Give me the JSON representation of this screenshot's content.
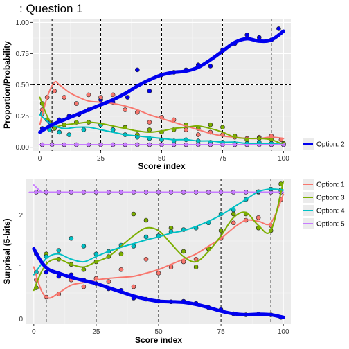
{
  "title": ": Question 1",
  "chart_data": [
    {
      "type": "line",
      "panel": "top",
      "xlabel": "Score index",
      "ylabel": "Proportion/Probability",
      "xlim": [
        -3,
        103
      ],
      "ylim": [
        -0.03,
        1.03
      ],
      "xticks": [
        0,
        25,
        50,
        75,
        100
      ],
      "xtick_labels": [
        "0",
        "25",
        "50",
        "75",
        "100"
      ],
      "yticks": [
        0,
        0.25,
        0.5,
        0.75,
        1.0
      ],
      "ytick_labels": [
        "0.00",
        "0.25",
        "0.50",
        "0.75",
        "1.00"
      ],
      "hline": 0.5,
      "vlines": [
        5,
        25,
        50,
        75,
        95
      ],
      "grid": true,
      "legend_position": "right",
      "legend": [
        {
          "label": "Option: 2",
          "color": "#0000ee"
        }
      ],
      "series": [
        {
          "name": "Option: 2",
          "color": "#0000ee",
          "emphasis": true,
          "x": [
            0,
            5,
            10,
            15,
            20,
            25,
            30,
            35,
            40,
            45,
            50,
            55,
            60,
            65,
            70,
            75,
            80,
            85,
            90,
            95,
            100
          ],
          "y": [
            0.12,
            0.18,
            0.22,
            0.26,
            0.3,
            0.34,
            0.38,
            0.43,
            0.49,
            0.54,
            0.58,
            0.6,
            0.61,
            0.64,
            0.7,
            0.77,
            0.84,
            0.87,
            0.85,
            0.86,
            0.93
          ]
        },
        {
          "name": "Option: 1",
          "color": "#f8766d",
          "x": [
            0,
            3,
            6,
            8,
            12,
            16,
            20,
            25,
            30,
            35,
            40,
            45,
            50,
            55,
            60,
            65,
            70,
            75,
            80,
            85,
            90,
            95,
            100
          ],
          "y": [
            0.18,
            0.4,
            0.52,
            0.5,
            0.44,
            0.4,
            0.37,
            0.36,
            0.35,
            0.33,
            0.3,
            0.26,
            0.23,
            0.2,
            0.17,
            0.14,
            0.11,
            0.09,
            0.08,
            0.07,
            0.07,
            0.08,
            0.07
          ]
        },
        {
          "name": "Option: 3",
          "color": "#7cae00",
          "x": [
            0,
            3,
            6,
            10,
            15,
            20,
            25,
            30,
            35,
            40,
            45,
            50,
            55,
            60,
            65,
            70,
            75,
            80,
            85,
            90,
            95,
            100
          ],
          "y": [
            0.4,
            0.25,
            0.17,
            0.18,
            0.19,
            0.2,
            0.19,
            0.17,
            0.15,
            0.13,
            0.12,
            0.13,
            0.15,
            0.16,
            0.17,
            0.15,
            0.12,
            0.08,
            0.07,
            0.07,
            0.06,
            0.02
          ]
        },
        {
          "name": "Option: 4",
          "color": "#00bfc4",
          "x": [
            0,
            5,
            10,
            15,
            20,
            25,
            30,
            35,
            40,
            45,
            50,
            55,
            60,
            65,
            70,
            75,
            80,
            85,
            90,
            95,
            100
          ],
          "y": [
            0.26,
            0.18,
            0.15,
            0.16,
            0.16,
            0.14,
            0.12,
            0.1,
            0.09,
            0.08,
            0.07,
            0.06,
            0.06,
            0.05,
            0.05,
            0.04,
            0.04,
            0.03,
            0.03,
            0.03,
            0.02
          ]
        },
        {
          "name": "Option: 5",
          "color": "#c77cff",
          "x": [
            0,
            50,
            100
          ],
          "y": [
            0.02,
            0.02,
            0.02
          ]
        }
      ],
      "points": [
        {
          "color": "#0000ee",
          "x": [
            1,
            4,
            8,
            12,
            16,
            20,
            25,
            30,
            36,
            40,
            45,
            50,
            55,
            60,
            65,
            70,
            75,
            80,
            85,
            90,
            95,
            98
          ],
          "y": [
            0.15,
            0.2,
            0.22,
            0.25,
            0.26,
            0.3,
            0.38,
            0.36,
            0.4,
            0.62,
            0.45,
            0.58,
            0.6,
            0.62,
            0.66,
            0.65,
            0.78,
            0.83,
            0.9,
            0.88,
            0.86,
            0.95
          ]
        },
        {
          "color": "#f8766d",
          "x": [
            1,
            3,
            6,
            10,
            15,
            20,
            25,
            30,
            35,
            40,
            45,
            50,
            55,
            60,
            65,
            70,
            75,
            80,
            85,
            90,
            95,
            99
          ],
          "y": [
            0.3,
            0.4,
            0.45,
            0.4,
            0.35,
            0.42,
            0.4,
            0.42,
            0.3,
            0.28,
            0.2,
            0.24,
            0.22,
            0.14,
            0.1,
            0.12,
            0.1,
            0.08,
            0.07,
            0.08,
            0.09,
            0.06
          ]
        },
        {
          "color": "#7cae00",
          "x": [
            1,
            3,
            6,
            10,
            15,
            20,
            25,
            30,
            35,
            40,
            45,
            50,
            55,
            60,
            65,
            70,
            75,
            80,
            85,
            90,
            95,
            100
          ],
          "y": [
            0.35,
            0.22,
            0.15,
            0.18,
            0.2,
            0.2,
            0.18,
            0.14,
            0.16,
            0.1,
            0.14,
            0.12,
            0.14,
            0.18,
            0.15,
            0.18,
            0.16,
            0.09,
            0.06,
            0.07,
            0.06,
            0.03
          ]
        },
        {
          "color": "#00bfc4",
          "x": [
            1,
            4,
            8,
            12,
            18,
            25,
            30,
            35,
            40,
            45,
            50,
            55,
            60,
            65,
            70,
            75,
            80,
            85,
            90,
            95,
            100
          ],
          "y": [
            0.27,
            0.14,
            0.12,
            0.1,
            0.14,
            0.18,
            0.14,
            0.1,
            0.08,
            0.07,
            0.06,
            0.05,
            0.06,
            0.05,
            0.04,
            0.04,
            0.03,
            0.03,
            0.04,
            0.03,
            0.02
          ]
        },
        {
          "color": "#c77cff",
          "x": [
            1,
            5,
            10,
            15,
            20,
            25,
            30,
            35,
            40,
            45,
            50,
            55,
            60,
            65,
            70,
            75,
            80,
            85,
            90,
            95,
            100
          ],
          "y": [
            0.02,
            0.02,
            0.02,
            0.02,
            0.02,
            0.02,
            0.02,
            0.02,
            0.02,
            0.02,
            0.02,
            0.02,
            0.02,
            0.02,
            0.02,
            0.02,
            0.02,
            0.02,
            0.02,
            0.02,
            0.02
          ]
        }
      ]
    },
    {
      "type": "line",
      "panel": "bottom",
      "xlabel": "Score index",
      "ylabel": "Surprisal (5-bits)",
      "xlim": [
        -3,
        103
      ],
      "ylim": [
        -0.1,
        2.7
      ],
      "xticks": [
        0,
        25,
        50,
        75,
        100
      ],
      "xtick_labels": [
        "0",
        "25",
        "50",
        "75",
        "100"
      ],
      "yticks": [
        0,
        1,
        2
      ],
      "ytick_labels": [
        "0",
        "1",
        "2"
      ],
      "hline": 0,
      "vlines": [
        5,
        25,
        50,
        75,
        95
      ],
      "grid": true,
      "legend_position": "right",
      "legend": [
        {
          "label": "Option: 1",
          "color": "#f8766d"
        },
        {
          "label": "Option: 3",
          "color": "#7cae00"
        },
        {
          "label": "Option: 4",
          "color": "#00bfc4"
        },
        {
          "label": "Option: 5",
          "color": "#c77cff"
        }
      ],
      "series": [
        {
          "name": "Option: 5",
          "color": "#c77cff",
          "x": [
            0,
            3,
            6,
            100
          ],
          "y": [
            2.58,
            2.45,
            2.44,
            2.44
          ]
        },
        {
          "name": "Option: 2",
          "color": "#0000ee",
          "emphasis": true,
          "x": [
            0,
            3,
            6,
            10,
            15,
            20,
            25,
            30,
            35,
            40,
            45,
            50,
            55,
            60,
            65,
            70,
            75,
            80,
            85,
            90,
            95,
            100
          ],
          "y": [
            1.35,
            1.1,
            0.95,
            0.88,
            0.8,
            0.74,
            0.68,
            0.6,
            0.52,
            0.44,
            0.38,
            0.34,
            0.33,
            0.32,
            0.28,
            0.22,
            0.15,
            0.1,
            0.08,
            0.09,
            0.08,
            0.03
          ]
        },
        {
          "name": "Option: 1",
          "color": "#f8766d",
          "x": [
            0,
            3,
            6,
            10,
            15,
            20,
            25,
            30,
            35,
            40,
            45,
            50,
            55,
            60,
            65,
            70,
            75,
            80,
            85,
            90,
            95,
            100
          ],
          "y": [
            1.0,
            0.55,
            0.4,
            0.5,
            0.65,
            0.7,
            0.75,
            0.78,
            0.8,
            0.82,
            0.88,
            0.95,
            1.05,
            1.15,
            1.25,
            1.4,
            1.55,
            1.75,
            1.9,
            1.88,
            1.85,
            2.4
          ]
        },
        {
          "name": "Option: 3",
          "color": "#7cae00",
          "x": [
            0,
            3,
            6,
            10,
            15,
            20,
            25,
            30,
            35,
            40,
            45,
            50,
            55,
            60,
            65,
            70,
            75,
            80,
            85,
            90,
            95,
            100
          ],
          "y": [
            0.55,
            0.9,
            1.1,
            1.15,
            1.05,
            1.0,
            1.1,
            1.2,
            1.4,
            1.6,
            1.75,
            1.7,
            1.45,
            1.2,
            1.1,
            1.3,
            1.6,
            1.95,
            2.05,
            1.8,
            1.7,
            2.65
          ]
        },
        {
          "name": "Option: 4",
          "color": "#00bfc4",
          "x": [
            0,
            3,
            6,
            10,
            15,
            20,
            25,
            30,
            35,
            40,
            45,
            50,
            55,
            60,
            65,
            70,
            75,
            80,
            85,
            90,
            95,
            100
          ],
          "y": [
            0.85,
            1.05,
            1.2,
            1.25,
            1.15,
            1.1,
            1.2,
            1.3,
            1.38,
            1.45,
            1.52,
            1.58,
            1.65,
            1.7,
            1.78,
            1.88,
            2.0,
            2.15,
            2.3,
            2.45,
            2.5,
            2.48
          ]
        }
      ],
      "points": [
        {
          "color": "#c77cff",
          "x": [
            1,
            5,
            10,
            15,
            20,
            25,
            30,
            35,
            40,
            45,
            50,
            55,
            60,
            65,
            70,
            75,
            80,
            85,
            90,
            95,
            99
          ],
          "y": [
            2.44,
            2.44,
            2.44,
            2.44,
            2.44,
            2.44,
            2.44,
            2.44,
            2.44,
            2.44,
            2.44,
            2.44,
            2.44,
            2.44,
            2.44,
            2.44,
            2.44,
            2.44,
            2.44,
            2.44,
            2.44
          ]
        },
        {
          "color": "#0000ee",
          "x": [
            1,
            5,
            10,
            15,
            20,
            25,
            30,
            35,
            40,
            45,
            50,
            55,
            60,
            65,
            70,
            75,
            80,
            85,
            90,
            95,
            99
          ],
          "y": [
            1.25,
            0.9,
            0.82,
            0.85,
            0.75,
            0.68,
            0.58,
            0.55,
            0.4,
            0.38,
            0.34,
            0.33,
            0.34,
            0.3,
            0.22,
            0.18,
            0.1,
            0.08,
            0.09,
            0.08,
            0.03
          ]
        },
        {
          "color": "#f8766d",
          "x": [
            1,
            5,
            10,
            15,
            20,
            25,
            30,
            35,
            40,
            45,
            50,
            55,
            60,
            65,
            70,
            75,
            80,
            85,
            90,
            95,
            99
          ],
          "y": [
            0.75,
            0.42,
            0.48,
            0.75,
            0.62,
            0.78,
            0.72,
            0.95,
            0.62,
            1.15,
            0.88,
            1.0,
            1.1,
            1.15,
            1.35,
            1.55,
            1.85,
            1.9,
            1.95,
            1.8,
            2.3
          ]
        },
        {
          "color": "#7cae00",
          "x": [
            1,
            5,
            10,
            15,
            20,
            25,
            30,
            35,
            40,
            45,
            50,
            55,
            60,
            65,
            70,
            75,
            80,
            85,
            90,
            95,
            99
          ],
          "y": [
            0.6,
            1.25,
            1.15,
            1.05,
            0.95,
            1.1,
            1.2,
            1.25,
            2.02,
            1.9,
            1.6,
            1.75,
            1.3,
            1.0,
            1.35,
            1.7,
            2.02,
            2.02,
            1.75,
            1.7,
            2.6
          ]
        },
        {
          "color": "#00bfc4",
          "x": [
            1,
            5,
            10,
            15,
            20,
            25,
            30,
            35,
            40,
            45,
            50,
            55,
            60,
            65,
            70,
            75,
            80,
            85,
            90,
            95,
            99
          ],
          "y": [
            0.9,
            1.2,
            1.32,
            1.55,
            1.4,
            1.25,
            1.3,
            1.42,
            1.4,
            1.58,
            1.6,
            1.68,
            1.72,
            1.75,
            1.85,
            2.02,
            2.1,
            2.3,
            2.45,
            2.5,
            2.48
          ]
        }
      ]
    }
  ]
}
